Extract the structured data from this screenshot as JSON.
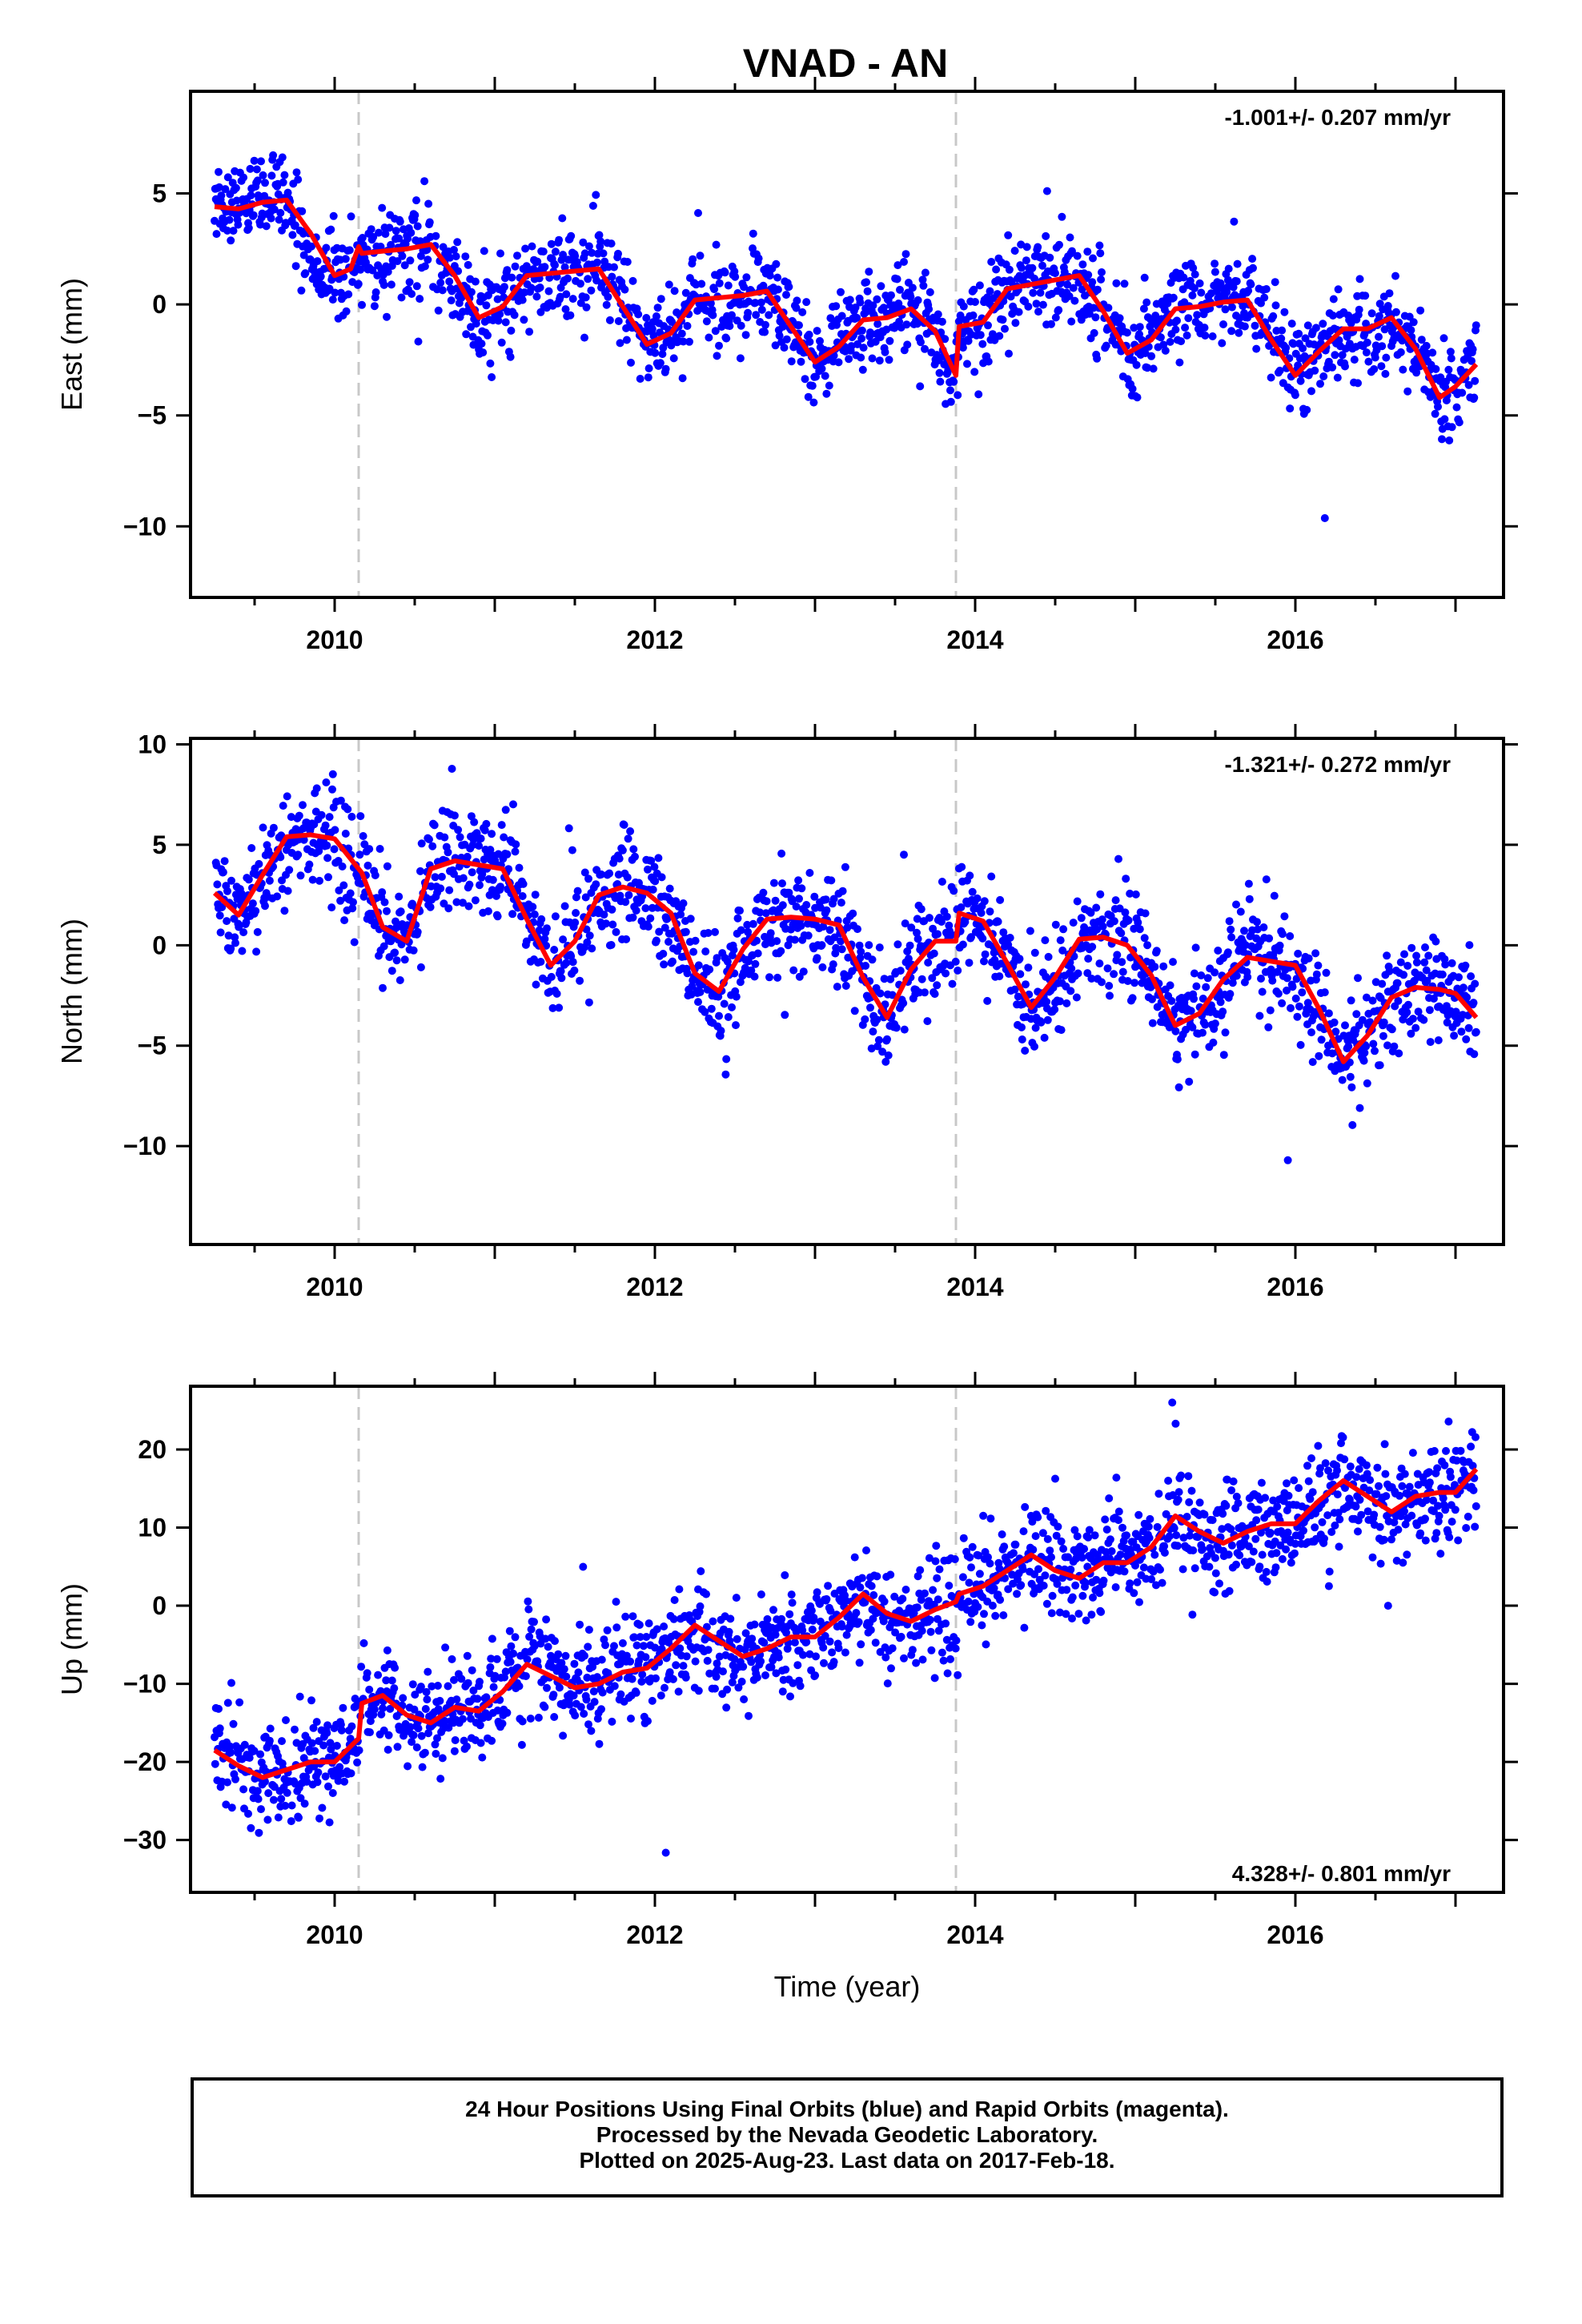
{
  "title": "VNAD - AN",
  "colors": {
    "points": "#0000ff",
    "model": "#ff0000",
    "event_lines": "#c8c8c8",
    "frame": "#000000"
  },
  "chart_data": [
    {
      "type": "scatter",
      "ylabel": "East (mm)",
      "xlabel": "",
      "xlim": [
        2009.1,
        2017.3
      ],
      "ylim": [
        -13.2,
        9.6
      ],
      "xticks": [
        2010,
        2012,
        2014,
        2016
      ],
      "yticks": [
        5,
        0,
        -5,
        -10
      ],
      "ytick_labels": [
        "5",
        "0",
        "−5",
        "−10"
      ],
      "event_lines_x": [
        2010.15,
        2013.88
      ],
      "rate": "-1.001+/- 0.207 mm/yr",
      "rate_position": "top-right",
      "series": [
        {
          "role": "observations",
          "sigma": 1.0,
          "x": [
            2009.25,
            2009.4,
            2009.55,
            2009.7,
            2009.85,
            2010.0,
            2010.15,
            2010.17,
            2010.3,
            2010.45,
            2010.6,
            2010.75,
            2010.9,
            2011.05,
            2011.2,
            2011.35,
            2011.5,
            2011.65,
            2011.8,
            2011.95,
            2012.1,
            2012.25,
            2012.4,
            2012.55,
            2012.7,
            2012.85,
            2013.0,
            2013.15,
            2013.3,
            2013.45,
            2013.6,
            2013.75,
            2013.88,
            2013.9,
            2014.05,
            2014.2,
            2014.35,
            2014.5,
            2014.65,
            2014.8,
            2014.95,
            2015.1,
            2015.25,
            2015.4,
            2015.55,
            2015.7,
            2015.85,
            2016.0,
            2016.15,
            2016.3,
            2016.45,
            2016.6,
            2016.75,
            2016.9,
            2017.0,
            2017.13
          ],
          "y": [
            4.8,
            4.4,
            4.7,
            4.4,
            2.0,
            1.3,
            2.2,
            2.4,
            2.3,
            2.5,
            2.8,
            1.2,
            -0.7,
            -0.2,
            1.3,
            1.4,
            1.6,
            1.8,
            -0.2,
            -1.8,
            -1.2,
            0.3,
            0.4,
            0.4,
            0.6,
            -1.0,
            -2.6,
            -1.8,
            -0.7,
            -0.6,
            -0.1,
            -1.3,
            -3.2,
            -1.0,
            -0.8,
            0.7,
            0.9,
            1.2,
            1.3,
            -0.3,
            -2.2,
            -1.6,
            -0.2,
            -0.1,
            0.1,
            0.2,
            -1.6,
            -3.2,
            -2.1,
            -1.1,
            -1.1,
            -0.6,
            -2.0,
            -4.2,
            -3.6,
            -2.6
          ]
        },
        {
          "role": "model",
          "x": [
            2009.25,
            2009.4,
            2009.55,
            2009.7,
            2009.85,
            2010.0,
            2010.1,
            2010.15,
            2010.17,
            2010.3,
            2010.45,
            2010.6,
            2010.75,
            2010.9,
            2011.05,
            2011.2,
            2011.35,
            2011.5,
            2011.65,
            2011.8,
            2011.95,
            2012.1,
            2012.25,
            2012.4,
            2012.55,
            2012.7,
            2012.85,
            2013.0,
            2013.15,
            2013.3,
            2013.45,
            2013.6,
            2013.75,
            2013.88,
            2013.9,
            2014.05,
            2014.2,
            2014.35,
            2014.5,
            2014.65,
            2014.8,
            2014.95,
            2015.1,
            2015.25,
            2015.4,
            2015.55,
            2015.7,
            2015.85,
            2016.0,
            2016.15,
            2016.3,
            2016.45,
            2016.6,
            2016.75,
            2016.9,
            2017.0,
            2017.13
          ],
          "y": [
            4.4,
            4.3,
            4.6,
            4.7,
            3.2,
            1.3,
            1.6,
            2.6,
            2.3,
            2.4,
            2.5,
            2.7,
            1.3,
            -0.6,
            -0.1,
            1.3,
            1.4,
            1.5,
            1.6,
            -0.1,
            -1.8,
            -1.3,
            0.2,
            0.3,
            0.4,
            0.6,
            -1.0,
            -2.6,
            -1.9,
            -0.7,
            -0.6,
            -0.2,
            -1.2,
            -3.2,
            -1.0,
            -0.8,
            0.7,
            0.9,
            1.1,
            1.3,
            -0.3,
            -2.2,
            -1.6,
            -0.2,
            -0.1,
            0.1,
            0.2,
            -1.6,
            -3.2,
            -2.1,
            -1.1,
            -1.1,
            -0.6,
            -2.0,
            -4.2,
            -3.7,
            -2.7
          ]
        }
      ]
    },
    {
      "type": "scatter",
      "ylabel": "North (mm)",
      "xlabel": "",
      "xlim": [
        2009.1,
        2017.3
      ],
      "ylim": [
        -14.9,
        10.3
      ],
      "xticks": [
        2010,
        2012,
        2014,
        2016
      ],
      "yticks": [
        10,
        5,
        0,
        -5,
        -10
      ],
      "ytick_labels": [
        "10",
        "5",
        "0",
        "−5",
        "−10"
      ],
      "event_lines_x": [
        2010.15,
        2013.88
      ],
      "rate": "-1.321+/- 0.272 mm/yr",
      "rate_position": "top-right",
      "series": [
        {
          "role": "observations",
          "sigma": 1.3,
          "x": [
            2009.25,
            2009.4,
            2009.55,
            2009.7,
            2009.85,
            2010.0,
            2010.15,
            2010.17,
            2010.3,
            2010.45,
            2010.6,
            2010.75,
            2010.9,
            2011.05,
            2011.2,
            2011.35,
            2011.5,
            2011.65,
            2011.8,
            2011.95,
            2012.1,
            2012.25,
            2012.4,
            2012.55,
            2012.7,
            2012.85,
            2013.0,
            2013.15,
            2013.3,
            2013.45,
            2013.6,
            2013.75,
            2013.88,
            2013.9,
            2014.05,
            2014.2,
            2014.35,
            2014.5,
            2014.65,
            2014.8,
            2014.95,
            2015.1,
            2015.25,
            2015.4,
            2015.55,
            2015.7,
            2015.85,
            2016.0,
            2016.15,
            2016.3,
            2016.45,
            2016.6,
            2016.75,
            2016.9,
            2017.0,
            2017.13
          ],
          "y": [
            2.6,
            1.5,
            3.5,
            5.4,
            5.5,
            5.3,
            3.8,
            3.6,
            0.9,
            0.2,
            3.8,
            4.2,
            4.0,
            3.8,
            1.3,
            -1.0,
            0.2,
            2.5,
            2.9,
            2.6,
            1.6,
            -1.4,
            -2.3,
            -0.2,
            1.3,
            1.4,
            1.3,
            1.0,
            -1.6,
            -3.6,
            -1.2,
            0.2,
            0.2,
            1.6,
            1.2,
            -0.9,
            -3.1,
            -1.6,
            0.3,
            0.4,
            0.0,
            -1.5,
            -4.0,
            -3.4,
            -1.7,
            -0.6,
            -0.8,
            -1.0,
            -3.2,
            -5.8,
            -4.5,
            -2.6,
            -2.1,
            -2.2,
            -2.4,
            -3.6
          ]
        },
        {
          "role": "model",
          "x": [
            2009.25,
            2009.4,
            2009.55,
            2009.7,
            2009.85,
            2010.0,
            2010.15,
            2010.17,
            2010.3,
            2010.45,
            2010.6,
            2010.75,
            2010.9,
            2011.05,
            2011.2,
            2011.35,
            2011.5,
            2011.65,
            2011.8,
            2011.95,
            2012.1,
            2012.25,
            2012.4,
            2012.55,
            2012.7,
            2012.85,
            2013.0,
            2013.15,
            2013.3,
            2013.45,
            2013.6,
            2013.75,
            2013.88,
            2013.9,
            2014.05,
            2014.2,
            2014.35,
            2014.5,
            2014.65,
            2014.8,
            2014.95,
            2015.1,
            2015.25,
            2015.4,
            2015.55,
            2015.7,
            2015.85,
            2016.0,
            2016.15,
            2016.3,
            2016.45,
            2016.6,
            2016.75,
            2016.9,
            2017.0,
            2017.13
          ],
          "y": [
            2.6,
            1.5,
            3.5,
            5.4,
            5.5,
            5.3,
            3.8,
            3.6,
            0.9,
            0.2,
            3.8,
            4.2,
            4.0,
            3.8,
            1.3,
            -1.0,
            0.2,
            2.5,
            2.9,
            2.6,
            1.6,
            -1.4,
            -2.3,
            -0.2,
            1.3,
            1.4,
            1.3,
            1.0,
            -1.6,
            -3.6,
            -1.2,
            0.2,
            0.2,
            1.6,
            1.2,
            -0.9,
            -3.1,
            -1.6,
            0.3,
            0.4,
            0.0,
            -1.5,
            -4.0,
            -3.4,
            -1.7,
            -0.6,
            -0.8,
            -1.0,
            -3.2,
            -5.8,
            -4.5,
            -2.6,
            -2.1,
            -2.2,
            -2.4,
            -3.6
          ]
        }
      ]
    },
    {
      "type": "scatter",
      "ylabel": "Up (mm)",
      "xlabel": "Time (year)",
      "xlim": [
        2009.1,
        2017.3
      ],
      "ylim": [
        -36.7,
        28.1
      ],
      "xticks": [
        2010,
        2012,
        2014,
        2016
      ],
      "yticks": [
        20,
        10,
        0,
        -10,
        -20,
        -30
      ],
      "ytick_labels": [
        "20",
        "10",
        "0",
        "−10",
        "−20",
        "−30"
      ],
      "event_lines_x": [
        2010.15,
        2013.88
      ],
      "rate": "4.328+/- 0.801 mm/yr",
      "rate_position": "bottom-right",
      "series": [
        {
          "role": "observations",
          "sigma": 3.3,
          "x": [
            2009.25,
            2009.4,
            2009.55,
            2009.7,
            2009.85,
            2010.0,
            2010.15,
            2010.17,
            2010.3,
            2010.45,
            2010.6,
            2010.75,
            2010.9,
            2011.05,
            2011.2,
            2011.35,
            2011.5,
            2011.65,
            2011.8,
            2011.95,
            2012.1,
            2012.25,
            2012.4,
            2012.55,
            2012.7,
            2012.85,
            2013.0,
            2013.15,
            2013.3,
            2013.45,
            2013.6,
            2013.75,
            2013.88,
            2013.9,
            2014.05,
            2014.2,
            2014.35,
            2014.5,
            2014.65,
            2014.8,
            2014.95,
            2015.1,
            2015.25,
            2015.4,
            2015.55,
            2015.7,
            2015.85,
            2016.0,
            2016.15,
            2016.3,
            2016.45,
            2016.6,
            2016.75,
            2016.9,
            2017.0,
            2017.13
          ],
          "y": [
            -18.5,
            -20.5,
            -22.0,
            -21.0,
            -20.0,
            -20.0,
            -17.0,
            -12.5,
            -11.5,
            -14.0,
            -15.0,
            -13.0,
            -13.5,
            -11.0,
            -7.5,
            -9.0,
            -10.5,
            -10.0,
            -8.5,
            -8.0,
            -5.5,
            -2.5,
            -4.5,
            -6.5,
            -5.5,
            -4.0,
            -4.0,
            -1.5,
            1.5,
            -1.0,
            -2.0,
            -0.5,
            0.5,
            1.5,
            2.5,
            4.5,
            6.5,
            4.5,
            3.5,
            5.5,
            5.5,
            7.5,
            11.5,
            9.5,
            8.0,
            9.5,
            10.5,
            10.5,
            13.5,
            16.0,
            14.0,
            12.0,
            14.0,
            14.5,
            14.5,
            17.5
          ]
        },
        {
          "role": "model",
          "x": [
            2009.25,
            2009.4,
            2009.55,
            2009.7,
            2009.85,
            2010.0,
            2010.15,
            2010.17,
            2010.3,
            2010.45,
            2010.6,
            2010.75,
            2010.9,
            2011.05,
            2011.2,
            2011.35,
            2011.5,
            2011.65,
            2011.8,
            2011.95,
            2012.1,
            2012.25,
            2012.4,
            2012.55,
            2012.7,
            2012.85,
            2013.0,
            2013.15,
            2013.3,
            2013.45,
            2013.6,
            2013.75,
            2013.88,
            2013.9,
            2014.05,
            2014.2,
            2014.35,
            2014.5,
            2014.65,
            2014.8,
            2014.95,
            2015.1,
            2015.25,
            2015.4,
            2015.55,
            2015.7,
            2015.85,
            2016.0,
            2016.15,
            2016.3,
            2016.45,
            2016.6,
            2016.75,
            2016.9,
            2017.0,
            2017.13
          ],
          "y": [
            -18.5,
            -20.5,
            -22.0,
            -21.0,
            -20.0,
            -20.0,
            -17.0,
            -12.5,
            -11.5,
            -14.0,
            -15.0,
            -13.0,
            -13.5,
            -11.0,
            -7.5,
            -9.0,
            -10.5,
            -10.0,
            -8.5,
            -8.0,
            -5.5,
            -2.5,
            -4.5,
            -6.5,
            -5.5,
            -4.0,
            -4.0,
            -1.5,
            1.5,
            -1.0,
            -2.0,
            -0.5,
            0.5,
            1.5,
            2.5,
            4.5,
            6.5,
            4.5,
            3.5,
            5.5,
            5.5,
            7.5,
            11.5,
            9.5,
            8.0,
            9.5,
            10.5,
            10.5,
            13.5,
            16.0,
            14.0,
            12.0,
            14.0,
            14.5,
            14.5,
            17.5
          ]
        }
      ]
    }
  ],
  "footer": {
    "line1": "24 Hour Positions Using Final Orbits (blue) and Rapid Orbits (magenta).",
    "line2": "Processed by the Nevada Geodetic Laboratory.",
    "line3": "Plotted on 2025-Aug-23. Last data on 2017-Feb-18."
  }
}
